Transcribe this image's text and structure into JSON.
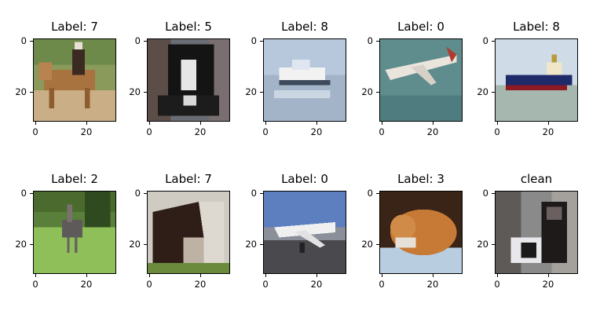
{
  "panels": [
    {
      "title": "Label: 7",
      "subject": "horse-with-rider"
    },
    {
      "title": "Label: 5",
      "subject": "dog"
    },
    {
      "title": "Label: 8",
      "subject": "boat"
    },
    {
      "title": "Label: 0",
      "subject": "airplane-in-flight"
    },
    {
      "title": "Label: 8",
      "subject": "ship"
    },
    {
      "title": "Label: 2",
      "subject": "ostrich"
    },
    {
      "title": "Label: 7",
      "subject": "horse-head"
    },
    {
      "title": "Label: 0",
      "subject": "airplane-on-ground"
    },
    {
      "title": "Label: 3",
      "subject": "cat"
    },
    {
      "title": "clean",
      "subject": "dog-sitting"
    }
  ],
  "axes": {
    "x_ticks": [
      "0",
      "20"
    ],
    "y_ticks": [
      "0",
      "20"
    ]
  }
}
